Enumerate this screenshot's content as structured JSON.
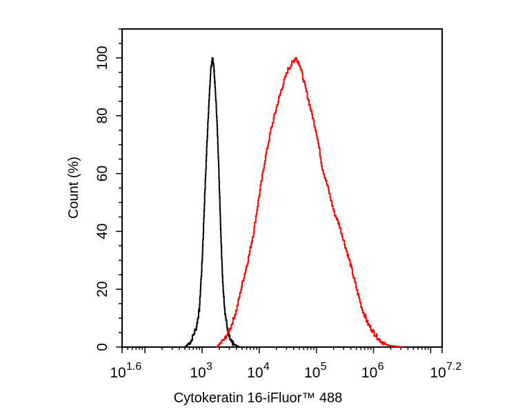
{
  "chart_data": {
    "type": "line",
    "title": "",
    "xlabel": "Cytokeratin 16-iFluor™ 488",
    "ylabel": "Count  (%)",
    "x_scale": "log10",
    "x_range_exponent": [
      1.6,
      7.2
    ],
    "ylim": [
      0,
      110
    ],
    "grid": false,
    "legend": "none",
    "x_tick_labels": [
      {
        "base": "10",
        "exp": "1.6",
        "value_exp": 1.6
      },
      {
        "base": "10",
        "exp": "3",
        "value_exp": 3
      },
      {
        "base": "10",
        "exp": "4",
        "value_exp": 4
      },
      {
        "base": "10",
        "exp": "5",
        "value_exp": 5
      },
      {
        "base": "10",
        "exp": "6",
        "value_exp": 6
      },
      {
        "base": "10",
        "exp": "7.2",
        "value_exp": 7.2
      }
    ],
    "y_ticks": [
      0,
      20,
      40,
      60,
      80,
      100
    ],
    "y_tick_labels": [
      "0",
      "20",
      "40",
      "60",
      "80",
      "100"
    ],
    "series": [
      {
        "color": "#000000",
        "x_exponent": [
          2.7,
          2.8,
          2.9,
          2.95,
          3.0,
          3.05,
          3.1,
          3.15,
          3.18,
          3.2,
          3.22,
          3.25,
          3.28,
          3.31,
          3.33,
          3.36,
          3.4,
          3.45,
          3.5,
          3.55,
          3.6,
          3.65
        ],
        "y": [
          0,
          2,
          7,
          13,
          30,
          55,
          78,
          96,
          100,
          98,
          92,
          82,
          68,
          50,
          38,
          22,
          12,
          5,
          2,
          1,
          0.5,
          0
        ]
      },
      {
        "color": "#ff0000",
        "x_exponent": [
          3.25,
          3.4,
          3.5,
          3.6,
          3.7,
          3.8,
          3.9,
          4.0,
          4.1,
          4.2,
          4.3,
          4.4,
          4.5,
          4.6,
          4.64,
          4.7,
          4.8,
          4.9,
          5.0,
          5.1,
          5.2,
          5.3,
          5.4,
          5.5,
          5.6,
          5.7,
          5.8,
          5.9,
          6.0,
          6.1,
          6.2,
          6.3,
          6.4,
          6.5
        ],
        "y": [
          0,
          3,
          7,
          13,
          22,
          30,
          40,
          53,
          65,
          75,
          83,
          90,
          96,
          99,
          100,
          98,
          90,
          82,
          74,
          62,
          55,
          47,
          42,
          35,
          28,
          20,
          13,
          8,
          5,
          2.5,
          1,
          0.4,
          0.2,
          0
        ]
      }
    ]
  }
}
